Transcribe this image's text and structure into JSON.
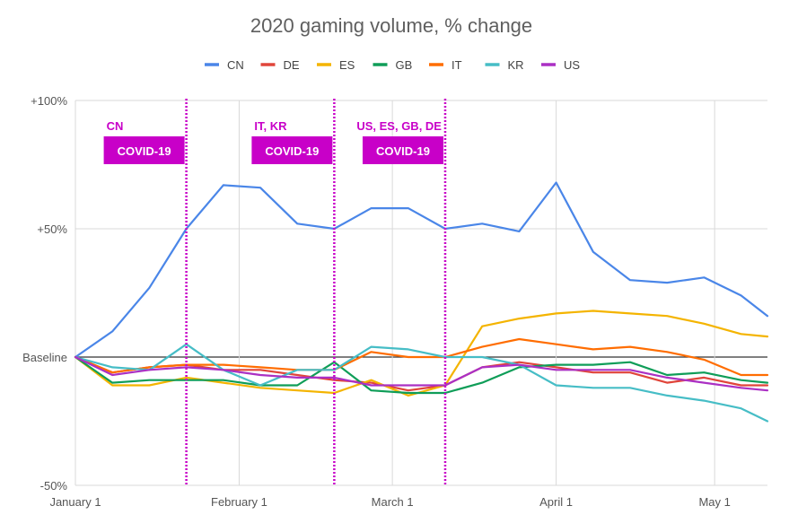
{
  "chart_data": {
    "type": "line",
    "title": "2020 gaming volume, % change",
    "xlabel": "",
    "ylabel": "",
    "x": [
      "2020-01-01",
      "2020-01-08",
      "2020-01-15",
      "2020-01-22",
      "2020-01-29",
      "2020-02-05",
      "2020-02-12",
      "2020-02-19",
      "2020-02-26",
      "2020-03-04",
      "2020-03-11",
      "2020-03-18",
      "2020-03-25",
      "2020-04-01",
      "2020-04-08",
      "2020-04-15",
      "2020-04-22",
      "2020-04-29",
      "2020-05-06",
      "2020-05-11"
    ],
    "x_ticks": [
      {
        "date": "2020-01-01",
        "label": "January 1"
      },
      {
        "date": "2020-02-01",
        "label": "February 1"
      },
      {
        "date": "2020-03-01",
        "label": "March 1"
      },
      {
        "date": "2020-04-01",
        "label": "April 1"
      },
      {
        "date": "2020-05-01",
        "label": "May 1"
      }
    ],
    "y_ticks": [
      {
        "value": 100,
        "label": "+100%"
      },
      {
        "value": 50,
        "label": "+50%"
      },
      {
        "value": 0,
        "label": "Baseline"
      },
      {
        "value": -50,
        "label": "-50%"
      }
    ],
    "ylim": [
      -50,
      100
    ],
    "grid": true,
    "legend_position": "top",
    "series": [
      {
        "name": "CN",
        "color": "#4a86e8",
        "values": [
          0,
          10,
          27,
          50,
          67,
          66,
          52,
          50,
          58,
          58,
          50,
          52,
          49,
          68,
          41,
          30,
          29,
          31,
          24,
          16
        ]
      },
      {
        "name": "DE",
        "color": "#e0453a",
        "values": [
          0,
          -6,
          -4,
          -3,
          -5,
          -5,
          -7,
          -9,
          -10,
          -13,
          -11,
          -4,
          -2,
          -4,
          -6,
          -6,
          -10,
          -8,
          -11,
          -11
        ]
      },
      {
        "name": "ES",
        "color": "#f4b400",
        "values": [
          0,
          -11,
          -11,
          -8,
          -10,
          -12,
          -13,
          -14,
          -9,
          -15,
          -11,
          12,
          15,
          17,
          18,
          17,
          16,
          13,
          9,
          8
        ]
      },
      {
        "name": "GB",
        "color": "#0f9d58",
        "values": [
          0,
          -10,
          -9,
          -9,
          -9,
          -11,
          -11,
          -2,
          -13,
          -14,
          -14,
          -10,
          -4,
          -3,
          -3,
          -2,
          -7,
          -6,
          -9,
          -10
        ]
      },
      {
        "name": "IT",
        "color": "#ff6d01",
        "values": [
          0,
          -6,
          -4,
          -3,
          -3,
          -4,
          -5,
          -5,
          2,
          0,
          0,
          4,
          7,
          5,
          3,
          4,
          2,
          -1,
          -7,
          -7
        ]
      },
      {
        "name": "KR",
        "color": "#46bdc6",
        "values": [
          0,
          -4,
          -5,
          5,
          -5,
          -11,
          -5,
          -5,
          4,
          3,
          0,
          0,
          -3,
          -11,
          -12,
          -12,
          -15,
          -17,
          -20,
          -25
        ]
      },
      {
        "name": "US",
        "color": "#ab30c4",
        "values": [
          0,
          -7,
          -5,
          -4,
          -5,
          -7,
          -8,
          -8,
          -11,
          -11,
          -11,
          -4,
          -3,
          -5,
          -5,
          -5,
          -8,
          -10,
          -12,
          -13
        ]
      }
    ],
    "annotations": [
      {
        "date": "2020-01-22",
        "top": "CN",
        "box": "COVID-19"
      },
      {
        "date": "2020-02-19",
        "top": "IT, KR",
        "box": "COVID-19"
      },
      {
        "date": "2020-03-11",
        "top": "US, ES, GB, DE",
        "box": "COVID-19"
      }
    ]
  }
}
